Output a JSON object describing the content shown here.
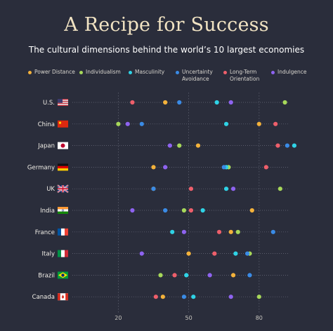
{
  "header": {
    "title": "A Recipe for Success",
    "subtitle": "The cultural dimensions behind the world’s 10 largest economies"
  },
  "chart_data": {
    "type": "scatter",
    "title": "A Recipe for Success",
    "subtitle": "The cultural dimensions behind the world’s 10 largest economies",
    "xlim": [
      0,
      100
    ],
    "xticks": [
      20,
      50,
      80
    ],
    "legend_position": "top",
    "series": [
      {
        "name": "Power Distance",
        "color": "#f4b23b"
      },
      {
        "name": "Individualism",
        "color": "#a7d85a"
      },
      {
        "name": "Masculinity",
        "color": "#2fd3e6"
      },
      {
        "name": "Uncertainty\nAvoidance",
        "color": "#3a8be6"
      },
      {
        "name": "Long-Term\nOrientation",
        "color": "#ee5f6b"
      },
      {
        "name": "Indulgence",
        "color": "#8e63f0"
      }
    ],
    "rows": [
      {
        "country": "U.S.",
        "flag": "us-flag",
        "values": [
          40,
          91,
          62,
          46,
          26,
          68
        ]
      },
      {
        "country": "China",
        "flag": "china-flag",
        "values": [
          80,
          20,
          66,
          30,
          87,
          24
        ]
      },
      {
        "country": "Japan",
        "flag": "japan-flag",
        "values": [
          54,
          46,
          95,
          92,
          88,
          42
        ]
      },
      {
        "country": "Germany",
        "flag": "germany-flag",
        "values": [
          35,
          67,
          66,
          65,
          83,
          40
        ]
      },
      {
        "country": "UK",
        "flag": "uk-flag",
        "values": [
          35,
          89,
          66,
          35,
          51,
          69
        ]
      },
      {
        "country": "India",
        "flag": "india-flag",
        "values": [
          77,
          48,
          56,
          40,
          51,
          26
        ]
      },
      {
        "country": "France",
        "flag": "france-flag",
        "values": [
          68,
          71,
          43,
          86,
          63,
          48
        ]
      },
      {
        "country": "Italy",
        "flag": "italy-flag",
        "values": [
          50,
          76,
          70,
          75,
          61,
          30
        ]
      },
      {
        "country": "Brazil",
        "flag": "brazil-flag",
        "values": [
          69,
          38,
          49,
          76,
          44,
          59
        ]
      },
      {
        "country": "Canada",
        "flag": "canada-flag",
        "values": [
          39,
          80,
          52,
          48,
          36,
          68
        ]
      }
    ]
  }
}
